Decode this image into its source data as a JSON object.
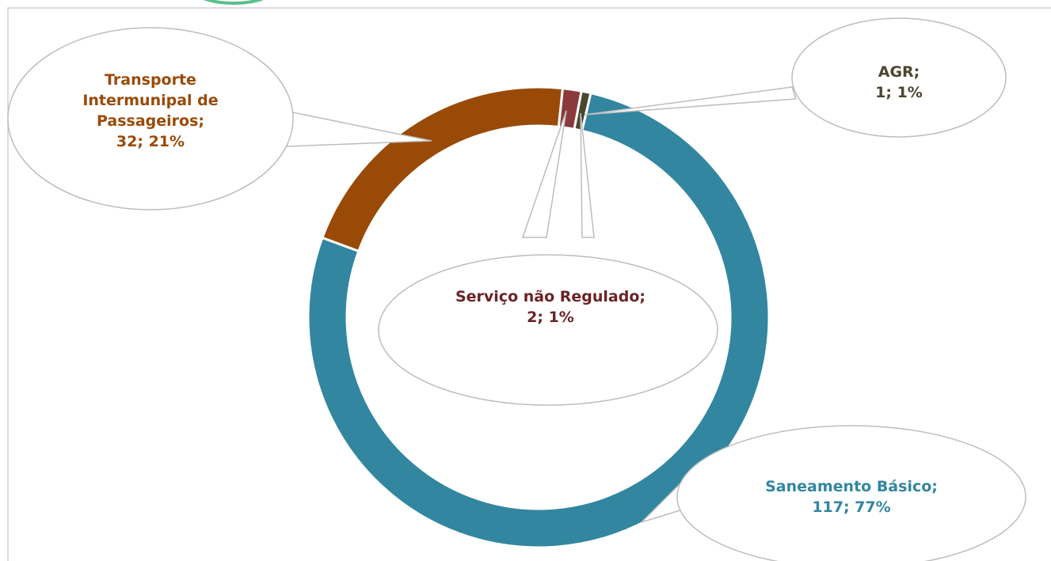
{
  "chart_data": {
    "type": "donut",
    "categories": [
      "Serviço não Regulado;",
      "AGR;",
      "Saneamento Básico;",
      "Transporte Intermunipal de Passageiros;"
    ],
    "values": [
      2,
      1,
      117,
      32
    ],
    "value_labels": [
      "2; 1%",
      "1; 1%",
      "117; 77%",
      "32; 21%"
    ],
    "colors": [
      "#8b3a3c",
      "#4a4630",
      "#3286a0",
      "#9a4a07"
    ],
    "label_colors": [
      "#6b2326",
      "#4a4630",
      "#3286a0",
      "#9a4a07"
    ]
  }
}
